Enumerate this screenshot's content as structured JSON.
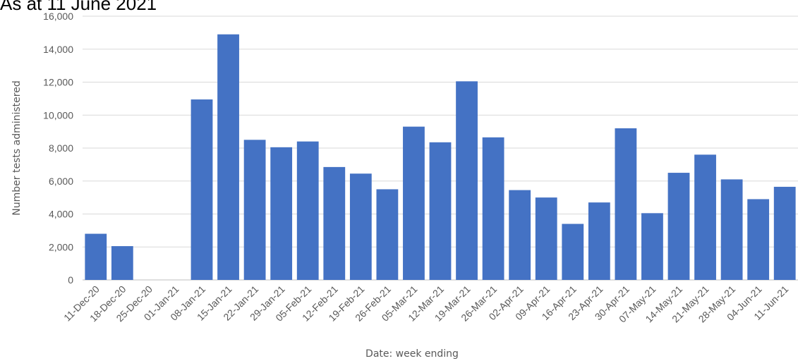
{
  "chart_data": {
    "type": "bar",
    "title": "As at 11 June 2021",
    "xlabel": "Date: week ending",
    "ylabel": "Number tests administered",
    "ylim": [
      0,
      16000
    ],
    "yticks": [
      0,
      2000,
      4000,
      6000,
      8000,
      10000,
      12000,
      14000,
      16000
    ],
    "ytick_labels": [
      "0",
      "2,000",
      "4,000",
      "6,000",
      "8,000",
      "10,000",
      "12,000",
      "14,000",
      "16,000"
    ],
    "grid": true,
    "legend": "none",
    "bar_color": "#4472C4",
    "categories": [
      "11-Dec-20",
      "18-Dec-20",
      "25-Dec-20",
      "01-Jan-21",
      "08-Jan-21",
      "15-Jan-21",
      "22-Jan-21",
      "29-Jan-21",
      "05-Feb-21",
      "12-Feb-21",
      "19-Feb-21",
      "26-Feb-21",
      "05-Mar-21",
      "12-Mar-21",
      "19-Mar-21",
      "26-Mar-21",
      "02-Apr-21",
      "09-Apr-21",
      "16-Apr-21",
      "23-Apr-21",
      "30-Apr-21",
      "07-May-21",
      "14-May-21",
      "21-May-21",
      "28-May-21",
      "04-Jun-21",
      "11-Jun-21"
    ],
    "values": [
      2800,
      2050,
      0,
      0,
      10950,
      14900,
      8500,
      8050,
      8400,
      6850,
      6450,
      5500,
      9300,
      8350,
      12050,
      8650,
      5450,
      5000,
      3400,
      4700,
      9200,
      4050,
      6500,
      7600,
      6100,
      4900,
      5650
    ]
  }
}
